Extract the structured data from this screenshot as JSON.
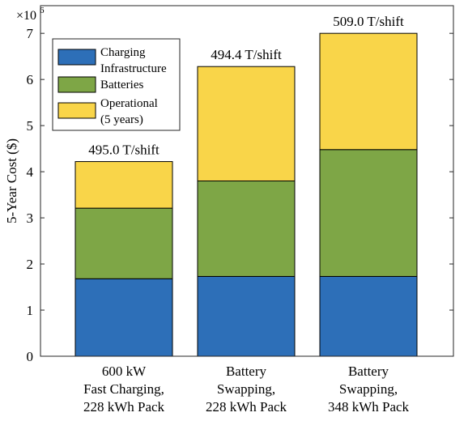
{
  "chart_data": {
    "type": "bar",
    "stacked": true,
    "categories": [
      [
        "600 kW",
        "Fast Charging,",
        "228 kWh Pack"
      ],
      [
        "Battery",
        "Swapping,",
        "228 kWh Pack"
      ],
      [
        "Battery",
        "Swapping,",
        "348 kWh Pack"
      ]
    ],
    "series": [
      {
        "name": [
          "Charging",
          "Infrastructure"
        ],
        "color": "#2d6fb8",
        "values": [
          1.68,
          1.73,
          1.73
        ]
      },
      {
        "name": [
          "Batteries"
        ],
        "color": "#7ea646",
        "values": [
          1.53,
          2.07,
          2.75
        ]
      },
      {
        "name": [
          "Operational",
          "(5 years)"
        ],
        "color": "#f9d549",
        "values": [
          1.01,
          2.48,
          2.52
        ]
      }
    ],
    "bar_annotations": [
      "495.0 T/shift",
      "494.4 T/shift",
      "509.0 T/shift"
    ],
    "ylabel": "5-Year Cost ($)",
    "y_multiplier": {
      "base": "×10",
      "exponent": "6"
    },
    "ylim": [
      0,
      7.6
    ],
    "yticks": [
      0,
      1,
      2,
      3,
      4,
      5,
      6,
      7
    ],
    "grid": false,
    "legend_position": "top-left"
  }
}
